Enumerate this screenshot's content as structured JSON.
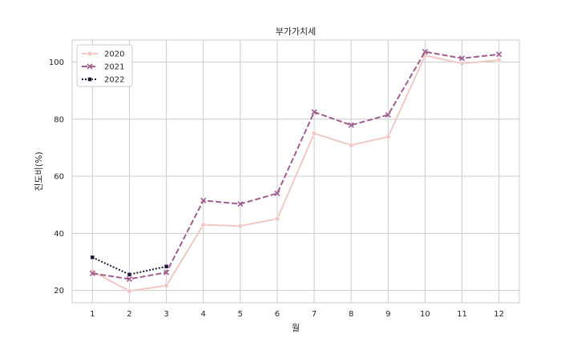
{
  "chart_data": {
    "type": "line",
    "title": "부가가치세",
    "xlabel": "월",
    "ylabel": "진도비(%)",
    "x": [
      1,
      2,
      3,
      4,
      5,
      6,
      7,
      8,
      9,
      10,
      11,
      12
    ],
    "xlim": [
      0.45,
      12.55
    ],
    "ylim": [
      15.7,
      107.7
    ],
    "yticks": [
      20,
      40,
      60,
      80,
      100
    ],
    "grid": true,
    "legend_position": "top-left",
    "series": [
      {
        "name": "2020",
        "color": "#f0c8c4",
        "linestyle": "solid",
        "marker": "circle",
        "x": [
          1,
          2,
          3,
          4,
          5,
          6,
          7,
          8,
          9,
          10,
          11,
          12
        ],
        "values": [
          26.7,
          19.8,
          21.7,
          43.0,
          42.6,
          45.1,
          75.0,
          70.9,
          73.8,
          102.3,
          99.5,
          100.7
        ]
      },
      {
        "name": "2021",
        "color": "#a05e8e",
        "linestyle": "dashed",
        "marker": "x",
        "x": [
          1,
          2,
          3,
          4,
          5,
          6,
          7,
          8,
          9,
          10,
          11,
          12
        ],
        "values": [
          26.0,
          24.0,
          26.3,
          51.5,
          50.3,
          54.0,
          82.5,
          77.9,
          81.5,
          103.6,
          101.3,
          102.7
        ]
      },
      {
        "name": "2022",
        "color": "#1c1838",
        "linestyle": "dotted",
        "marker": "square",
        "x": [
          1,
          2,
          3
        ],
        "values": [
          31.6,
          25.6,
          28.4
        ]
      }
    ]
  }
}
